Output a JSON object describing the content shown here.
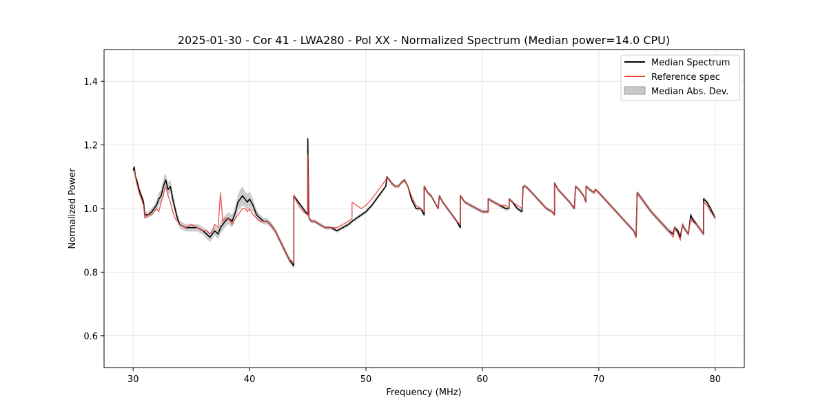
{
  "chart_data": {
    "type": "line",
    "title": "2025-01-30 - Cor 41 - LWA280 - Pol XX - Normalized Spectrum (Median power=14.0 CPU)",
    "xlabel": "Frequency (MHz)",
    "ylabel": "Normalized Power",
    "xlim": [
      27.5,
      82.5
    ],
    "ylim": [
      0.5,
      1.5
    ],
    "xticks": [
      30,
      40,
      50,
      60,
      70,
      80
    ],
    "xtick_labels": [
      "30",
      "40",
      "50",
      "60",
      "70",
      "80"
    ],
    "yticks": [
      0.6,
      0.8,
      1.0,
      1.2,
      1.4
    ],
    "ytick_labels": [
      "0.6",
      "0.8",
      "1.0",
      "1.2",
      "1.4"
    ],
    "grid": true,
    "legend_position": "top-right",
    "legend": [
      {
        "label": "Median Spectrum",
        "kind": "line",
        "color": "#000000"
      },
      {
        "label": "Reference spec",
        "kind": "line",
        "color": "#e8413c"
      },
      {
        "label": "Median Abs. Dev.",
        "kind": "patch",
        "color": "#c8c8c8"
      }
    ],
    "series": [
      {
        "name": "Median Spectrum",
        "color": "#000000",
        "x": [
          30.0,
          30.1,
          30.2,
          30.3,
          30.5,
          30.7,
          30.9,
          31.0,
          31.3,
          31.6,
          31.8,
          32.0,
          32.2,
          32.4,
          32.6,
          32.7,
          32.8,
          33.0,
          33.2,
          33.4,
          33.6,
          33.8,
          34.0,
          34.5,
          35.0,
          35.5,
          36.0,
          36.3,
          36.6,
          36.8,
          37.0,
          37.3,
          37.5,
          37.7,
          37.9,
          38.2,
          38.5,
          38.8,
          39.0,
          39.2,
          39.4,
          39.6,
          39.8,
          40.0,
          40.3,
          40.6,
          40.9,
          41.2,
          41.5,
          41.8,
          42.2,
          42.6,
          43.0,
          43.4,
          43.8,
          43.8,
          44.2,
          44.6,
          45.0,
          45.0,
          45.1,
          45.3,
          45.6,
          46.0,
          46.5,
          47.0,
          47.5,
          48.0,
          48.5,
          48.8,
          48.8,
          49.2,
          49.6,
          50.0,
          50.5,
          50.9,
          51.3,
          51.7,
          51.8,
          52.0,
          52.2,
          52.5,
          52.8,
          53.0,
          53.3,
          53.6,
          53.9,
          54.3,
          54.7,
          55.0,
          55.0,
          55.3,
          55.6,
          55.9,
          56.2,
          56.3,
          56.6,
          57.0,
          57.4,
          57.8,
          58.1,
          58.1,
          58.5,
          59.0,
          59.5,
          60.0,
          60.3,
          60.5,
          60.5,
          61.0,
          61.5,
          62.0,
          62.3,
          62.3,
          62.6,
          63.0,
          63.4,
          63.5,
          63.7,
          64.0,
          64.5,
          65.0,
          65.5,
          66.0,
          66.2,
          66.2,
          66.5,
          67.0,
          67.5,
          67.9,
          68.0,
          68.3,
          68.7,
          68.9,
          68.9,
          69.2,
          69.6,
          69.7,
          70.0,
          70.5,
          71.0,
          71.5,
          72.0,
          72.5,
          73.0,
          73.2,
          73.3,
          73.7,
          74.1,
          74.5,
          75.0,
          75.5,
          76.0,
          76.4,
          76.5,
          76.8,
          77.0,
          77.2,
          77.3,
          77.5,
          77.7,
          77.9,
          78.0,
          78.4,
          78.8,
          79.0,
          79.0,
          79.3,
          79.6,
          80.0
        ],
        "y": [
          1.12,
          1.13,
          1.1,
          1.09,
          1.06,
          1.04,
          1.02,
          0.98,
          0.98,
          0.99,
          1.0,
          1.01,
          1.03,
          1.04,
          1.07,
          1.08,
          1.09,
          1.06,
          1.07,
          1.03,
          1.0,
          0.97,
          0.95,
          0.94,
          0.94,
          0.94,
          0.93,
          0.92,
          0.91,
          0.92,
          0.93,
          0.92,
          0.94,
          0.95,
          0.96,
          0.97,
          0.96,
          0.99,
          1.02,
          1.03,
          1.04,
          1.03,
          1.02,
          1.03,
          1.01,
          0.98,
          0.97,
          0.96,
          0.96,
          0.95,
          0.93,
          0.9,
          0.87,
          0.84,
          0.82,
          1.04,
          1.02,
          1.0,
          0.98,
          1.22,
          0.97,
          0.96,
          0.96,
          0.95,
          0.94,
          0.94,
          0.93,
          0.94,
          0.95,
          0.96,
          0.96,
          0.97,
          0.98,
          0.99,
          1.01,
          1.03,
          1.05,
          1.07,
          1.1,
          1.09,
          1.08,
          1.07,
          1.07,
          1.08,
          1.09,
          1.07,
          1.03,
          1.0,
          1.0,
          0.98,
          1.07,
          1.05,
          1.04,
          1.02,
          1.0,
          1.04,
          1.02,
          1.0,
          0.98,
          0.96,
          0.94,
          1.04,
          1.02,
          1.01,
          1.0,
          0.99,
          0.99,
          0.99,
          1.03,
          1.02,
          1.01,
          1.0,
          1.0,
          1.03,
          1.02,
          1.0,
          0.99,
          1.07,
          1.07,
          1.06,
          1.04,
          1.02,
          1.0,
          0.99,
          0.98,
          1.08,
          1.06,
          1.04,
          1.02,
          1.0,
          1.07,
          1.06,
          1.04,
          1.02,
          1.07,
          1.06,
          1.05,
          1.06,
          1.05,
          1.03,
          1.01,
          0.99,
          0.97,
          0.95,
          0.93,
          0.91,
          1.05,
          1.03,
          1.01,
          0.99,
          0.97,
          0.95,
          0.93,
          0.92,
          0.94,
          0.93,
          0.91,
          0.95,
          0.94,
          0.93,
          0.92,
          0.98,
          0.97,
          0.95,
          0.93,
          0.92,
          1.03,
          1.02,
          1.0,
          0.97
        ]
      },
      {
        "name": "Reference spec",
        "color": "#e8413c",
        "x": [
          30.0,
          30.1,
          30.2,
          30.3,
          30.5,
          30.7,
          30.9,
          31.0,
          31.3,
          31.6,
          31.8,
          32.0,
          32.2,
          32.4,
          32.6,
          32.7,
          32.8,
          33.0,
          33.2,
          33.4,
          33.6,
          33.8,
          34.0,
          34.5,
          35.0,
          35.5,
          36.0,
          36.3,
          36.6,
          36.8,
          37.0,
          37.3,
          37.5,
          37.7,
          37.9,
          38.2,
          38.5,
          38.8,
          39.0,
          39.2,
          39.4,
          39.6,
          39.8,
          40.0,
          40.3,
          40.6,
          40.9,
          41.2,
          41.5,
          41.8,
          42.2,
          42.6,
          43.0,
          43.4,
          43.8,
          43.8,
          44.2,
          44.6,
          45.0,
          45.0,
          45.1,
          45.3,
          45.6,
          46.0,
          46.5,
          47.0,
          47.5,
          48.0,
          48.5,
          48.8,
          48.8,
          49.2,
          49.6,
          50.0,
          50.5,
          50.9,
          51.3,
          51.7,
          51.8,
          52.0,
          52.2,
          52.5,
          52.8,
          53.0,
          53.3,
          53.6,
          53.9,
          54.3,
          54.7,
          55.0,
          55.0,
          55.3,
          55.6,
          55.9,
          56.2,
          56.3,
          56.6,
          57.0,
          57.4,
          57.8,
          58.1,
          58.1,
          58.5,
          59.0,
          59.5,
          60.0,
          60.3,
          60.5,
          60.5,
          61.0,
          61.5,
          62.0,
          62.3,
          62.3,
          62.6,
          63.0,
          63.4,
          63.5,
          63.7,
          64.0,
          64.5,
          65.0,
          65.5,
          66.0,
          66.2,
          66.2,
          66.5,
          67.0,
          67.5,
          67.9,
          68.0,
          68.3,
          68.7,
          68.9,
          68.9,
          69.2,
          69.6,
          69.7,
          70.0,
          70.5,
          71.0,
          71.5,
          72.0,
          72.5,
          73.0,
          73.2,
          73.3,
          73.7,
          74.1,
          74.5,
          75.0,
          75.5,
          76.0,
          76.4,
          76.5,
          76.8,
          77.0,
          77.2,
          77.3,
          77.5,
          77.7,
          77.9,
          78.0,
          78.4,
          78.8,
          79.0,
          79.0,
          79.3,
          79.6,
          80.0
        ],
        "y": [
          1.12,
          1.12,
          1.1,
          1.08,
          1.05,
          1.03,
          1.01,
          0.97,
          0.98,
          0.98,
          0.99,
          1.0,
          0.99,
          1.02,
          1.04,
          1.06,
          1.07,
          1.04,
          1.02,
          0.99,
          0.97,
          0.96,
          0.95,
          0.94,
          0.95,
          0.94,
          0.93,
          0.93,
          0.92,
          0.93,
          0.95,
          0.94,
          1.05,
          0.96,
          0.97,
          0.97,
          0.95,
          0.97,
          0.98,
          0.99,
          1.0,
          1.0,
          0.99,
          1.0,
          0.98,
          0.97,
          0.96,
          0.96,
          0.96,
          0.95,
          0.93,
          0.9,
          0.87,
          0.84,
          0.83,
          1.04,
          1.01,
          0.99,
          0.98,
          1.17,
          0.97,
          0.96,
          0.96,
          0.95,
          0.94,
          0.94,
          0.94,
          0.95,
          0.96,
          0.97,
          1.02,
          1.01,
          1.0,
          1.01,
          1.03,
          1.05,
          1.07,
          1.09,
          1.1,
          1.09,
          1.08,
          1.07,
          1.07,
          1.08,
          1.09,
          1.07,
          1.04,
          1.01,
          1.0,
          0.99,
          1.07,
          1.05,
          1.04,
          1.02,
          1.0,
          1.04,
          1.02,
          1.0,
          0.98,
          0.96,
          0.95,
          1.04,
          1.02,
          1.01,
          1.0,
          0.99,
          0.99,
          0.99,
          1.03,
          1.02,
          1.01,
          1.01,
          1.0,
          1.03,
          1.02,
          1.01,
          1.0,
          1.07,
          1.07,
          1.06,
          1.04,
          1.02,
          1.0,
          0.99,
          0.98,
          1.08,
          1.06,
          1.04,
          1.02,
          1.0,
          1.07,
          1.06,
          1.04,
          1.02,
          1.07,
          1.06,
          1.05,
          1.06,
          1.05,
          1.03,
          1.01,
          0.99,
          0.97,
          0.95,
          0.93,
          0.91,
          1.05,
          1.03,
          1.01,
          0.99,
          0.97,
          0.95,
          0.93,
          0.91,
          0.94,
          0.92,
          0.9,
          0.95,
          0.94,
          0.93,
          0.92,
          0.97,
          0.96,
          0.95,
          0.93,
          0.92,
          1.02,
          1.01,
          0.99,
          0.97
        ]
      }
    ],
    "band_half_width": [
      0.008,
      0.008,
      0.01,
      0.01,
      0.012,
      0.012,
      0.012,
      0.01,
      0.01,
      0.012,
      0.012,
      0.015,
      0.02,
      0.02,
      0.025,
      0.025,
      0.02,
      0.02,
      0.02,
      0.018,
      0.015,
      0.012,
      0.012,
      0.012,
      0.012,
      0.012,
      0.012,
      0.015,
      0.015,
      0.015,
      0.015,
      0.015,
      0.02,
      0.02,
      0.018,
      0.018,
      0.02,
      0.02,
      0.025,
      0.03,
      0.03,
      0.025,
      0.025,
      0.025,
      0.02,
      0.015,
      0.012,
      0.01,
      0.01,
      0.01,
      0.01,
      0.01,
      0.01,
      0.01,
      0.01,
      0.008,
      0.006,
      0.006,
      0.006,
      0.008,
      0.006,
      0.006,
      0.006,
      0.006,
      0.006,
      0.006,
      0.006,
      0.006,
      0.006,
      0.006,
      0.006,
      0.006,
      0.006,
      0.006,
      0.006,
      0.006,
      0.006,
      0.006,
      0.006,
      0.006,
      0.006,
      0.006,
      0.006,
      0.006,
      0.006,
      0.006,
      0.006,
      0.006,
      0.006,
      0.006,
      0.006,
      0.006,
      0.006,
      0.006,
      0.006,
      0.006,
      0.006,
      0.006,
      0.006,
      0.006,
      0.006,
      0.006,
      0.006,
      0.006,
      0.006,
      0.006,
      0.006,
      0.006,
      0.006,
      0.006,
      0.006,
      0.006,
      0.006,
      0.006,
      0.006,
      0.006,
      0.006,
      0.006,
      0.006,
      0.006,
      0.006,
      0.006,
      0.006,
      0.006,
      0.006,
      0.006,
      0.006,
      0.006,
      0.006,
      0.006,
      0.006,
      0.006,
      0.006,
      0.006,
      0.006,
      0.006,
      0.006,
      0.006,
      0.006,
      0.006,
      0.006,
      0.006,
      0.006,
      0.006,
      0.006,
      0.006,
      0.008,
      0.008,
      0.008,
      0.008,
      0.008,
      0.008,
      0.008,
      0.008,
      0.008,
      0.008,
      0.008,
      0.008,
      0.008,
      0.008,
      0.008,
      0.008,
      0.008,
      0.008,
      0.008,
      0.008,
      0.008,
      0.008,
      0.008,
      0.008
    ]
  }
}
